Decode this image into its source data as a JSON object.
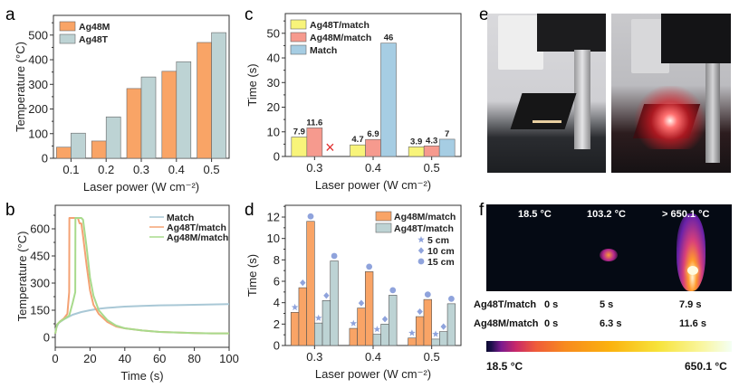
{
  "panels": {
    "a": "a",
    "b": "b",
    "c": "c",
    "d": "d",
    "e": "e",
    "f": "f"
  },
  "chart_data": [
    {
      "id": "a",
      "type": "bar",
      "title": "",
      "xlabel": "Laser power (W cm⁻²)",
      "ylabel": "Temperature (°C)",
      "categories": [
        "0.1",
        "0.2",
        "0.3",
        "0.4",
        "0.5"
      ],
      "ylim": [
        0,
        580
      ],
      "yticks": [
        0,
        100,
        200,
        300,
        400,
        500
      ],
      "legend_position": "top-left",
      "series": [
        {
          "name": "Ag48M",
          "color": "#f9a466",
          "values": [
            45,
            70,
            283,
            353,
            470
          ]
        },
        {
          "name": "Ag48T",
          "color": "#bdd3d4",
          "values": [
            102,
            168,
            330,
            392,
            510
          ]
        }
      ]
    },
    {
      "id": "b",
      "type": "line",
      "title": "",
      "xlabel": "Time (s)",
      "ylabel": "Temperature (°C)",
      "xlim": [
        0,
        100
      ],
      "ylim": [
        -55,
        730
      ],
      "xticks": [
        0,
        20,
        40,
        60,
        80,
        100
      ],
      "yticks": [
        0,
        150,
        300,
        450,
        600
      ],
      "legend_position": "top-right",
      "series": [
        {
          "name": "Match",
          "color": "#a9c8d6",
          "x": [
            0,
            2,
            5,
            8,
            10,
            15,
            20,
            25,
            30,
            40,
            50,
            60,
            70,
            80,
            90,
            100
          ],
          "y": [
            40,
            80,
            100,
            115,
            125,
            140,
            150,
            158,
            163,
            170,
            174,
            177,
            178,
            180,
            182,
            184
          ]
        },
        {
          "name": "Ag48T/match",
          "color": "#f4a274",
          "x": [
            0,
            1,
            3,
            5,
            7,
            8,
            8.1,
            10,
            12,
            13,
            14,
            15,
            16,
            18,
            20,
            22,
            25,
            30,
            35,
            40,
            50,
            60,
            70,
            80,
            90,
            100
          ],
          "y": [
            20,
            70,
            90,
            105,
            130,
            250,
            660,
            660,
            660,
            660,
            630,
            630,
            560,
            400,
            260,
            180,
            130,
            85,
            60,
            50,
            38,
            30,
            27,
            24,
            22,
            22
          ]
        },
        {
          "name": "Ag48M/match",
          "color": "#a8da8c",
          "x": [
            0,
            1,
            3,
            5,
            8,
            10,
            11.5,
            11.6,
            13,
            15,
            16,
            18,
            20,
            22,
            25,
            30,
            35,
            40,
            50,
            60,
            70,
            80,
            90,
            100
          ],
          "y": [
            20,
            70,
            90,
            100,
            120,
            190,
            250,
            660,
            660,
            660,
            650,
            500,
            330,
            230,
            150,
            95,
            65,
            50,
            38,
            30,
            27,
            24,
            22,
            22
          ]
        }
      ]
    },
    {
      "id": "c",
      "type": "bar",
      "title": "",
      "xlabel": "Laser power (W cm⁻²)",
      "ylabel": "Time (s)",
      "categories": [
        "0.3",
        "0.4",
        "0.5"
      ],
      "ylim": [
        0,
        58
      ],
      "yticks": [
        0,
        10,
        20,
        30,
        40,
        50
      ],
      "legend_position": "top-left",
      "annotations": [
        {
          "category": "0.3",
          "series": "Match",
          "text": "×",
          "meaning": "not ignited"
        }
      ],
      "series": [
        {
          "name": "Ag48T/match",
          "color": "#f8f47a",
          "values": [
            7.9,
            4.7,
            3.9
          ],
          "labels": [
            "7.9",
            "4.7",
            "3.9"
          ]
        },
        {
          "name": "Ag48M/match",
          "color": "#f69a8e",
          "values": [
            11.6,
            6.9,
            4.3
          ],
          "labels": [
            "11.6",
            "6.9",
            "4.3"
          ]
        },
        {
          "name": "Match",
          "color": "#a6cde3",
          "values": [
            null,
            46,
            7
          ],
          "labels": [
            "",
            "46",
            "7"
          ]
        }
      ]
    },
    {
      "id": "d",
      "type": "bar",
      "title": "",
      "xlabel": "Laser power (W cm⁻²)",
      "ylabel": "Time (s)",
      "categories": [
        "0.3",
        "0.4",
        "0.5"
      ],
      "subcategories": [
        "5 cm",
        "10 cm",
        "15 cm"
      ],
      "ylim": [
        0,
        13.1
      ],
      "yticks": [
        0,
        2,
        4,
        6,
        8,
        10,
        12
      ],
      "legend_position": "top-right",
      "marker_legend": [
        {
          "name": "5 cm",
          "marker": "star"
        },
        {
          "name": "10 cm",
          "marker": "diamond"
        },
        {
          "name": "15 cm",
          "marker": "circle"
        }
      ],
      "marker_color": "#8fa3dc",
      "series": [
        {
          "name": "Ag48M/match",
          "color": "#f9a466",
          "values": [
            [
              3.1,
              5.4,
              11.6
            ],
            [
              1.6,
              3.5,
              6.9
            ],
            [
              0.7,
              2.7,
              4.3
            ]
          ]
        },
        {
          "name": "Ag48T/match",
          "color": "#bdd3d4",
          "values": [
            [
              2.1,
              4.2,
              7.9
            ],
            [
              1.05,
              2.0,
              4.7
            ],
            [
              0.6,
              1.3,
              3.9
            ]
          ]
        }
      ]
    }
  ],
  "thermal": {
    "temps": [
      "18.5 °C",
      "103.2 °C",
      "> 650.1 °C"
    ],
    "rows": [
      {
        "label": "Ag48T/match",
        "times": [
          "0 s",
          "5 s",
          "7.9 s"
        ]
      },
      {
        "label": "Ag48M/match",
        "times": [
          "0 s",
          "6.3 s",
          "11.6 s"
        ]
      }
    ],
    "colorbar": {
      "min": "18.5 °C",
      "max": "650.1 °C"
    }
  },
  "photos": [
    {
      "name": "setup-laser-off"
    },
    {
      "name": "setup-laser-on"
    }
  ]
}
